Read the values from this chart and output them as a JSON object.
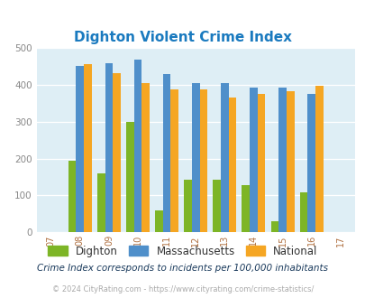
{
  "title": "Dighton Violent Crime Index",
  "title_color": "#1a7abf",
  "years": [
    2007,
    2008,
    2009,
    2010,
    2011,
    2012,
    2013,
    2014,
    2015,
    2016,
    2017
  ],
  "data_years": [
    2008,
    2009,
    2010,
    2011,
    2012,
    2013,
    2014,
    2015,
    2016
  ],
  "dighton": [
    193,
    160,
    300,
    60,
    142,
    143,
    128,
    30,
    108
  ],
  "massachusetts": [
    450,
    458,
    467,
    428,
    405,
    405,
    393,
    392,
    375
  ],
  "national": [
    455,
    430,
    405,
    387,
    387,
    365,
    376,
    383,
    396
  ],
  "dighton_color": "#7db526",
  "massachusetts_color": "#4f8fca",
  "national_color": "#f5a623",
  "background_color": "#deeef5",
  "ylim": [
    0,
    500
  ],
  "yticks": [
    0,
    100,
    200,
    300,
    400,
    500
  ],
  "note": "Crime Index corresponds to incidents per 100,000 inhabitants",
  "copyright": "© 2024 CityRating.com - https://www.cityrating.com/crime-statistics/",
  "note_color": "#1a3a5c",
  "copyright_color": "#aaaaaa",
  "bar_width": 0.27,
  "legend_labels": [
    "Dighton",
    "Massachusetts",
    "National"
  ]
}
